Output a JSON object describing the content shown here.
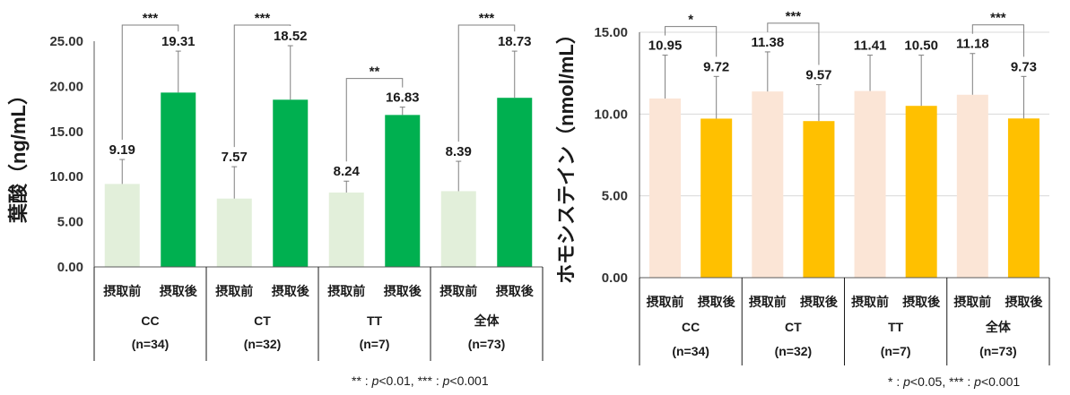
{
  "chart_data": [
    {
      "type": "bar",
      "ylabel": "葉酸（ng/mL）",
      "ylim": [
        0,
        25
      ],
      "yticks": [
        "0.00",
        "5.00",
        "10.00",
        "15.00",
        "20.00",
        "25.00"
      ],
      "gridlines": false,
      "categories": [
        "摂取前",
        "摂取後",
        "摂取前",
        "摂取後",
        "摂取前",
        "摂取後",
        "摂取前",
        "摂取後"
      ],
      "groups": [
        {
          "name": "CC",
          "n": "(n=34)"
        },
        {
          "name": "CT",
          "n": "(n=32)"
        },
        {
          "name": "TT",
          "n": "(n=7)"
        },
        {
          "name": "全体",
          "n": "(n=73)"
        }
      ],
      "values": [
        9.19,
        19.31,
        7.57,
        18.52,
        8.24,
        16.83,
        8.39,
        18.73
      ],
      "labels": [
        "9.19",
        "19.31",
        "7.57",
        "18.52",
        "8.24",
        "16.83",
        "8.39",
        "18.73"
      ],
      "error_upper": [
        11.9,
        23.9,
        11.1,
        24.5,
        9.5,
        17.7,
        11.7,
        23.9
      ],
      "colors": [
        "#e2efda",
        "#00b050"
      ],
      "significance": [
        {
          "group": 0,
          "label": "***"
        },
        {
          "group": 1,
          "label": "***"
        },
        {
          "group": 2,
          "label": "**"
        },
        {
          "group": 3,
          "label": "***"
        }
      ],
      "footnote": {
        "parts": [
          {
            "text": "** : "
          },
          {
            "text": "p",
            "italic": true
          },
          {
            "text": "<0.01, *** : "
          },
          {
            "text": "p",
            "italic": true
          },
          {
            "text": "<0.001"
          }
        ]
      }
    },
    {
      "type": "bar",
      "ylabel": "ホモシステイン（nmol/mL）",
      "ylim": [
        0,
        15
      ],
      "yticks": [
        "0.00",
        "5.00",
        "10.00",
        "15.00"
      ],
      "gridlines": true,
      "categories": [
        "摂取前",
        "摂取後",
        "摂取前",
        "摂取後",
        "摂取前",
        "摂取後",
        "摂取前",
        "摂取後"
      ],
      "groups": [
        {
          "name": "CC",
          "n": "(n=34)"
        },
        {
          "name": "CT",
          "n": "(n=32)"
        },
        {
          "name": "TT",
          "n": "(n=7)"
        },
        {
          "name": "全体",
          "n": "(n=73)"
        }
      ],
      "values": [
        10.95,
        9.72,
        11.38,
        9.57,
        11.41,
        10.5,
        11.18,
        9.73
      ],
      "labels": [
        "10.95",
        "9.72",
        "11.38",
        "9.57",
        "11.41",
        "10.50",
        "11.18",
        "9.73"
      ],
      "error_upper": [
        13.6,
        12.3,
        13.8,
        11.8,
        13.6,
        13.6,
        13.7,
        12.3
      ],
      "colors": [
        "#fbe5d6",
        "#ffc000"
      ],
      "significance": [
        {
          "group": 0,
          "label": "*"
        },
        {
          "group": 1,
          "label": "***"
        },
        {
          "group": 3,
          "label": "***"
        }
      ],
      "footnote": {
        "parts": [
          {
            "text": "* : "
          },
          {
            "text": "p",
            "italic": true
          },
          {
            "text": "<0.05, *** : "
          },
          {
            "text": "p",
            "italic": true
          },
          {
            "text": "<0.001"
          }
        ]
      }
    }
  ]
}
